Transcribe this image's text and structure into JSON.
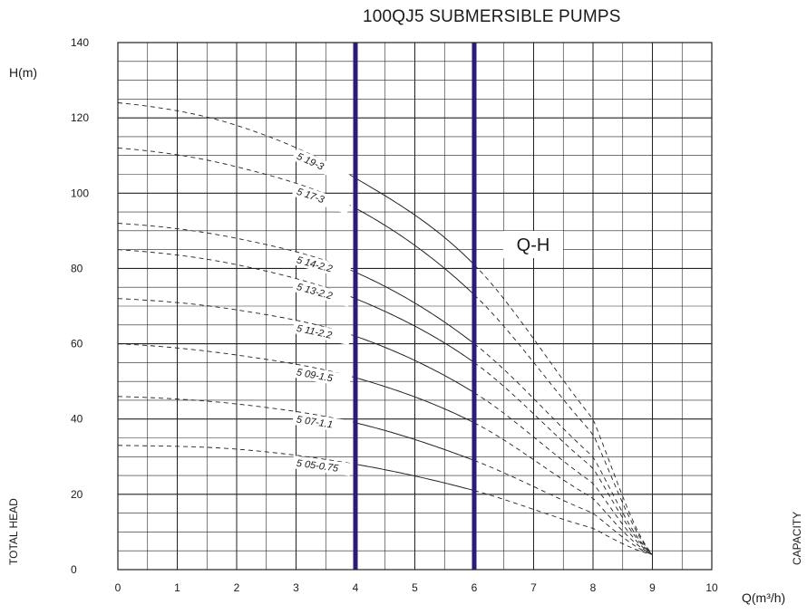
{
  "title": "100QJ5 SUBMERSIBLE PUMPS",
  "y_unit_label": "H(m)",
  "x_unit_label": "Q(m³/h)",
  "y_side_label": "TOTAL HEAD",
  "x_side_label": "CAPACITY",
  "curve_tag": "Q-H",
  "colors": {
    "highlight_line": "#2d1a7a",
    "grid": "#222222",
    "curve": "#222222"
  },
  "chart_data": {
    "type": "line",
    "title": "100QJ5 SUBMERSIBLE PUMPS",
    "xlabel": "Q(m³/h)",
    "ylabel": "H(m)",
    "xlim": [
      0,
      10
    ],
    "ylim": [
      0,
      140
    ],
    "x_ticks": [
      "0",
      "1",
      "2",
      "3",
      "4",
      "5",
      "6",
      "7",
      "8",
      "9",
      "10"
    ],
    "y_ticks": [
      "0",
      "20",
      "40",
      "60",
      "80",
      "100",
      "120",
      "140"
    ],
    "grid": true,
    "operating_range": [
      4,
      6
    ],
    "series": [
      {
        "name": "5 19-3",
        "x": [
          0,
          2,
          4,
          6,
          8,
          9
        ],
        "y": [
          124,
          118,
          104,
          81,
          40,
          4
        ]
      },
      {
        "name": "5 17-3",
        "x": [
          0,
          2,
          4,
          6,
          8,
          9
        ],
        "y": [
          112,
          107,
          96,
          73,
          36,
          4
        ]
      },
      {
        "name": "5 14-2.2",
        "x": [
          0,
          2,
          4,
          6,
          8,
          9
        ],
        "y": [
          92,
          88,
          79,
          60,
          30,
          4
        ]
      },
      {
        "name": "5 13-2.2",
        "x": [
          0,
          2,
          4,
          6,
          8,
          9
        ],
        "y": [
          85,
          81,
          72,
          55,
          27,
          4
        ]
      },
      {
        "name": "5 11-2.2",
        "x": [
          0,
          2,
          4,
          6,
          8,
          9
        ],
        "y": [
          72,
          69,
          62,
          47,
          23,
          4
        ]
      },
      {
        "name": "5 09-1.5",
        "x": [
          0,
          2,
          4,
          6,
          8,
          9
        ],
        "y": [
          60,
          57,
          51,
          39,
          19,
          4
        ]
      },
      {
        "name": "5 07-1.1",
        "x": [
          0,
          2,
          4,
          6,
          8,
          9
        ],
        "y": [
          46,
          44,
          39,
          29,
          15,
          4
        ]
      },
      {
        "name": "5 05-0.75",
        "x": [
          0,
          2,
          4,
          6,
          8,
          9
        ],
        "y": [
          33,
          32,
          28,
          21,
          11,
          4
        ]
      }
    ]
  }
}
